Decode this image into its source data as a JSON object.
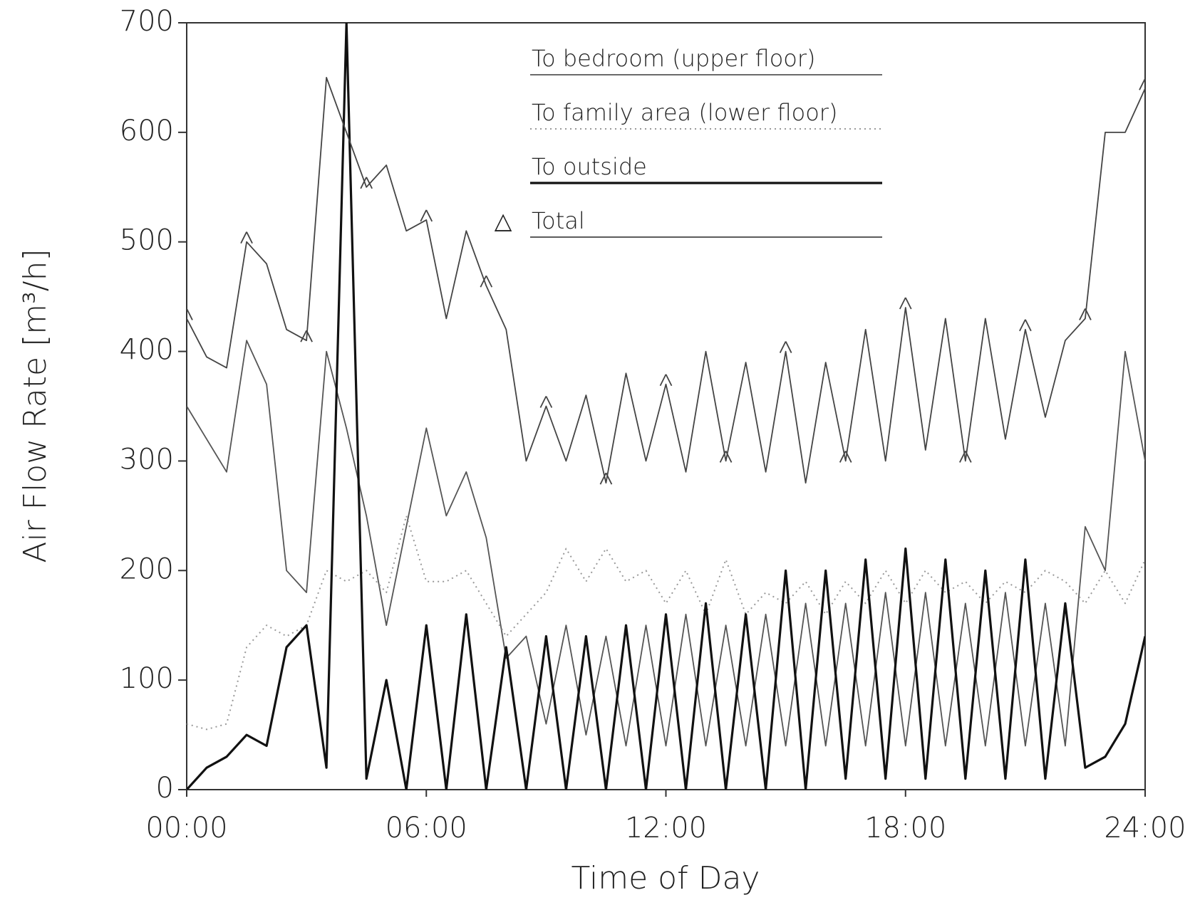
{
  "chart_data": {
    "type": "line",
    "x_label": "Time of Day",
    "y_label": "Air Flow Rate [m³/h]",
    "xlim": [
      0,
      24
    ],
    "xticks": [
      {
        "value": 0,
        "label": "00:00"
      },
      {
        "value": 6,
        "label": "06:00"
      },
      {
        "value": 12,
        "label": "12:00"
      },
      {
        "value": 18,
        "label": "18:00"
      },
      {
        "value": 24,
        "label": "24:00"
      }
    ],
    "ylim": [
      0,
      700
    ],
    "yticks": [
      0,
      100,
      200,
      300,
      400,
      500,
      600,
      700
    ],
    "x": [
      0,
      0.5,
      1,
      1.5,
      2,
      2.5,
      3,
      3.5,
      4,
      4.5,
      5,
      5.5,
      6,
      6.5,
      7,
      7.5,
      8,
      8.5,
      9,
      9.5,
      10,
      10.5,
      11,
      11.5,
      12,
      12.5,
      13,
      13.5,
      14,
      14.5,
      15,
      15.5,
      16,
      16.5,
      17,
      17.5,
      18,
      18.5,
      19,
      19.5,
      20,
      20.5,
      21,
      21.5,
      22,
      22.5,
      23,
      23.5,
      24
    ],
    "series": [
      {
        "name": "To bedroom (upper floor)",
        "color": "#555555",
        "dash": "solid",
        "values": [
          350,
          320,
          290,
          410,
          370,
          200,
          180,
          400,
          330,
          250,
          150,
          240,
          330,
          250,
          290,
          230,
          120,
          140,
          60,
          150,
          50,
          140,
          40,
          150,
          40,
          160,
          40,
          150,
          40,
          160,
          40,
          170,
          40,
          170,
          40,
          180,
          40,
          180,
          40,
          170,
          40,
          180,
          40,
          170,
          40,
          240,
          200,
          400,
          300
        ]
      },
      {
        "name": "To family area (lower floor)",
        "color": "#999999",
        "dash": "dotted",
        "values": [
          60,
          55,
          60,
          130,
          150,
          140,
          150,
          200,
          190,
          200,
          180,
          250,
          190,
          190,
          200,
          170,
          140,
          160,
          180,
          220,
          190,
          220,
          190,
          200,
          170,
          200,
          160,
          210,
          160,
          180,
          170,
          190,
          160,
          190,
          170,
          200,
          170,
          200,
          180,
          190,
          170,
          190,
          180,
          200,
          190,
          170,
          200,
          170,
          210
        ]
      },
      {
        "name": "To outside",
        "color": "#111111",
        "dash": "thick",
        "values": [
          0,
          20,
          30,
          50,
          40,
          130,
          150,
          20,
          700,
          10,
          100,
          0,
          150,
          0,
          160,
          0,
          130,
          0,
          140,
          0,
          140,
          0,
          150,
          0,
          160,
          0,
          170,
          0,
          160,
          0,
          200,
          0,
          200,
          10,
          210,
          10,
          220,
          10,
          210,
          10,
          200,
          10,
          210,
          10,
          170,
          20,
          30,
          60,
          140
        ]
      },
      {
        "name": "Total",
        "color": "#444444",
        "dash": "solid",
        "marker": "△",
        "values": [
          430,
          395,
          385,
          500,
          480,
          420,
          410,
          650,
          600,
          550,
          570,
          510,
          520,
          430,
          510,
          460,
          420,
          300,
          350,
          300,
          360,
          280,
          380,
          300,
          370,
          290,
          400,
          300,
          390,
          290,
          400,
          280,
          390,
          300,
          420,
          300,
          440,
          310,
          430,
          300,
          430,
          320,
          420,
          340,
          410,
          430,
          600,
          600,
          640
        ]
      }
    ]
  }
}
